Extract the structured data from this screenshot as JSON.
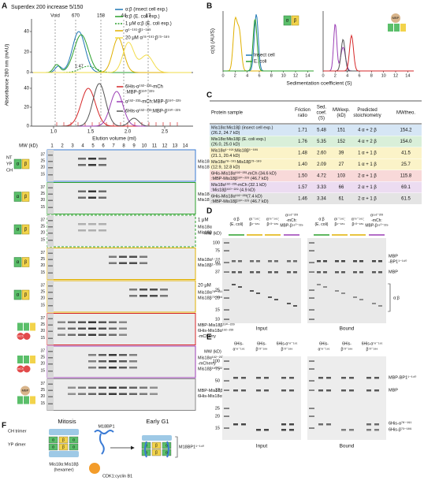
{
  "panel_a": {
    "label": "A",
    "column_title": "Superdex 200 increase 5/150",
    "size_markers": [
      "Void",
      "670",
      "158",
      "44",
      "17"
    ],
    "legend_top": [
      {
        "name": "α:β (insect cell exp.)",
        "color": "#1f77b4",
        "style": "solid"
      },
      {
        "name": "α:β (E. coli exp.)",
        "color": "#2ca02c",
        "style": "solid"
      },
      {
        "name": "1 μM α:β (E. coli exp.)",
        "color": "#2ca02c",
        "style": "dashed"
      },
      {
        "name": "α¹⁻¹⁹¹:β¹⁻¹⁸⁹",
        "color": "#e0b000",
        "style": "solid"
      },
      {
        "name": "20 μM α⁷⁸⁻¹⁹¹:β⁷³⁻¹⁸⁹",
        "color": "#f2dc4a",
        "style": "solid"
      }
    ],
    "annotation": "1:47",
    "legend_bottom": [
      {
        "lines": [
          "6His-α¹⁹²⁻²³³-mCh",
          ":MBP-β¹⁹⁰⁻²²⁹"
        ],
        "color": "#d62728"
      },
      {
        "lines": [
          "α¹⁹²⁻²³³-mCh:MBP-β¹⁹⁰⁻²²⁹"
        ],
        "color": "#9b3fb5"
      },
      {
        "lines": [
          "6His-α¹⁹²⁻²³³:MBP-β¹⁹⁰⁻²²⁹"
        ],
        "color": "#555555"
      }
    ],
    "y_axis_label": "Absorbance 280 nm (mAU)",
    "y_ticks_top": [
      "40",
      "20",
      "0"
    ],
    "y_ticks_bottom": [
      "40",
      "20",
      "0"
    ],
    "x_axis_label": "Elution volume (ml)",
    "x_ticks": [
      "1.0",
      "1.5",
      "2.0",
      "2.5"
    ],
    "cartoon_labels": [
      "NT",
      "YP",
      "CH"
    ],
    "gel": {
      "mw_label": "MW (kD)",
      "lanes": [
        "1",
        "2",
        "3",
        "4",
        "5",
        "6",
        "7",
        "8",
        "9",
        "10",
        "11",
        "12",
        "13",
        "14"
      ],
      "mw_markers": [
        "37",
        "25",
        "20",
        "15"
      ],
      "strips": [
        {
          "color": "#3a7bd5",
          "style": "solid",
          "bands": [
            "Mis18α",
            "Mis18β"
          ]
        },
        {
          "color": "#2ca02c",
          "style": "solid",
          "bands": [
            "Mis18α",
            "Mis18β"
          ]
        },
        {
          "color": "#2ca02c",
          "style": "dashed",
          "note": "1 μM",
          "bands": [
            "Mis18α",
            "Mis18β"
          ]
        },
        {
          "color": "#e0b000",
          "style": "solid",
          "bands": [
            "Mis18α¹⁻¹⁹¹",
            "Mis18β¹⁻¹⁸⁹"
          ]
        },
        {
          "color": "#e0b000",
          "style": "solid",
          "note": "20 μM",
          "bands": [
            "Mis18α⁷⁸⁻¹⁹¹",
            "Mis18β⁷³⁻¹⁸⁹"
          ]
        },
        {
          "color": "#d62728",
          "style": "solid",
          "bands": [
            "MBP-Mis18β¹⁹⁰⁻²²⁹",
            "6His-Mis18α¹⁹²⁻²³³",
            "-mCherry"
          ]
        },
        {
          "color": "#9b3fb5",
          "style": "solid",
          "bands": [
            "Mis18α¹⁹²⁻²³³",
            "-mCherry",
            "Mis18β¹⁹⁰⁻²²⁹"
          ]
        },
        {
          "color": "#888888",
          "style": "solid",
          "bands": [
            "MBP-Mis18β¹⁹⁰⁻²²⁹",
            "6His-Mis18α¹⁹²⁻²³³"
          ]
        }
      ]
    }
  },
  "cartoon_letters": {
    "alpha": "α",
    "beta": "β",
    "mbp": "MBP",
    "mch": "mCh"
  },
  "panel_b": {
    "label": "B",
    "y_axis_label": "c(s) (AU/S)",
    "x_axis_label": "Sedimentation coefficient (S)",
    "x_ticks": [
      "0",
      "2",
      "4",
      "6",
      "8",
      "10",
      "12",
      "14"
    ],
    "legend": [
      {
        "name": "Insect cell",
        "color": "#1f77b4"
      },
      {
        "name": "E. coli",
        "color": "#2ca02c"
      }
    ]
  },
  "panel_c": {
    "label": "C",
    "header": [
      [
        "Protein sample"
      ],
      [
        "Friction",
        "ratio"
      ],
      [
        "Sed.",
        "coef.",
        "(S)"
      ],
      [
        "MWexp.",
        "(kD)"
      ],
      [
        "Predicted",
        "stoichiometry"
      ],
      [
        "MWtheo."
      ]
    ],
    "rows": [
      {
        "color": "#d6e6f5",
        "cells": [
          [
            "Mis18α:Mis18β (insect cell exp.)",
            "(26.2, 24.7 kD)"
          ],
          "1.71",
          "5.48",
          "151",
          "4 α + 2 β",
          "154.2"
        ]
      },
      {
        "color": "#d9efd9",
        "cells": [
          [
            "Mis18α:Mis18β (E. coli exp.)",
            "(26.0, 25.0 kD)"
          ],
          "1.76",
          "5.35",
          "152",
          "4 α + 2 β",
          "154.0"
        ]
      },
      {
        "color": "#fbf3c8",
        "cells": [
          [
            "Mis18α¹⁻¹⁹¹:Mis18β¹⁻¹⁸⁹",
            "(21.1, 20.4 kD)"
          ],
          "1.48",
          "2.60",
          "39",
          "1 α + 1 β",
          "41.5"
        ]
      },
      {
        "color": "#fbf3c8",
        "cells": [
          [
            "Mis18α⁷⁸⁻¹⁹¹:Mis18β⁷³⁻¹⁸⁹",
            "(12.9, 12.8 kD)"
          ],
          "1.40",
          "2.09",
          "27",
          "1 α + 1 β",
          "25.7"
        ]
      },
      {
        "color": "#f8d9d9",
        "cells": [
          [
            "6His-Mis18α¹⁹²⁻²³³-mCh (34.6 kD)",
            ":MBP-Mis18β¹⁹⁰⁻²²⁹ (46.7 kD)"
          ],
          "1.50",
          "4.72",
          "103",
          "2 α + 1 β",
          "115.8"
        ]
      },
      {
        "color": "#ecdcf1",
        "cells": [
          [
            "Mis18α¹⁹²⁻²³³-mCh (32.1 kD)",
            ":Mis18β¹⁹⁰⁻²²⁹ (4.9 kD)"
          ],
          "1.57",
          "3.33",
          "66",
          "2 α + 1 β",
          "69.1"
        ]
      },
      {
        "color": "#e4e4e4",
        "cells": [
          [
            "6His-Mis18α¹⁹²⁻²³³(7.4 kD)",
            ":MBP-Mis18β¹⁹⁰⁻²²⁹ (46.7 kD)"
          ],
          "1.46",
          "3.34",
          "61",
          "2 α + 1 β",
          "61.5"
        ]
      }
    ]
  },
  "panel_d": {
    "label": "D",
    "mw_label": "MW (kD)",
    "mw_markers": [
      "100",
      "75",
      "50",
      "37",
      "25",
      "20",
      "15",
      "10"
    ],
    "lane_headers": [
      {
        "lines": [
          "α:β",
          "(E. coli)"
        ],
        "color": "#2ca02c"
      },
      {
        "lines": [
          "α¹⁻¹⁹¹:",
          "β¹⁻¹⁸⁹"
        ],
        "color": "#e0b000"
      },
      {
        "lines": [
          "α⁷⁸⁻¹⁹¹:",
          "β⁷³⁻¹⁸⁹"
        ],
        "color": "#e0b000"
      },
      {
        "lines": [
          "α¹⁹²⁻²³³",
          "-mCh:",
          "MBP-β¹⁹⁰⁻²²⁹"
        ],
        "color": "#9b3fb5"
      }
    ],
    "right_labels": [
      [
        "MBP",
        "-BP1¹⁻¹⁴⁰"
      ],
      [
        "MBP"
      ],
      [
        "α:β"
      ]
    ],
    "bottom_labels": [
      "Input",
      "Bound"
    ]
  },
  "panel_e": {
    "label": "E",
    "mw_label": "MW (kD)",
    "mw_markers": [
      "100",
      "75",
      "50",
      "37",
      "25",
      "20",
      "15"
    ],
    "lane_headers": [
      [
        "6His-",
        "α⁷⁸⁻¹⁹¹"
      ],
      [
        "6His-",
        "β⁷³⁻¹⁸⁹"
      ],
      [
        "6His-α⁷⁸⁻¹⁹¹",
        "β⁷³⁻¹⁸⁹"
      ]
    ],
    "right_labels": [
      "MBP-BP1¹⁻¹⁴⁰",
      "MBP",
      "6His-α⁷⁸⁻¹⁹¹",
      "6His-β⁷³⁻¹⁸⁹"
    ],
    "bottom_labels": [
      "Input",
      "Bound"
    ]
  },
  "panel_f": {
    "label": "F",
    "stage_left": "Mitosis",
    "stage_right": "Early G1",
    "ch_label": "CH trimer",
    "yp_label": "YP dimer",
    "complex_lines": [
      "Mis18α:Mis18β",
      "(hexamer)"
    ],
    "m18bp1": "M18BP1",
    "kinase": "CDK1:cyclin B1",
    "fragment": "M18BP1¹⁻¹⁴⁰"
  }
}
